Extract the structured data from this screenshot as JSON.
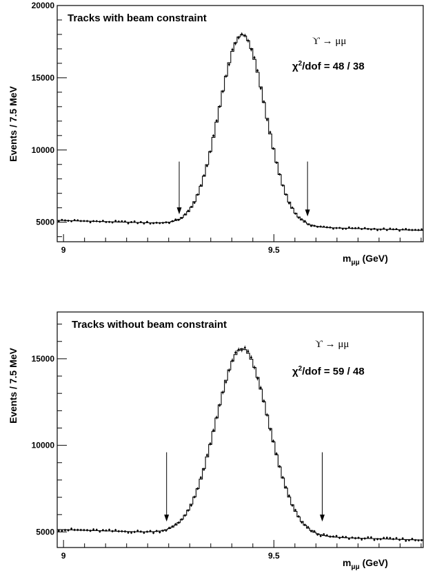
{
  "chart_data": [
    {
      "type": "line",
      "title": "Tracks with beam constraint",
      "ylabel": "Events / 7.5 MeV",
      "xlabel": "m",
      "xlabel_sub": "μμ",
      "xlabel_unit": " (GeV)",
      "decay_label": "ϒ → μμ",
      "chi2_prefix": "χ",
      "chi2_sup": "2",
      "chi2_suffix": "/dof = 48 / 38",
      "xlim": [
        8.985,
        9.855
      ],
      "ylim": [
        3650,
        20000
      ],
      "xticks": [
        {
          "value": 9.0,
          "label": "9"
        },
        {
          "value": 9.5,
          "label": "9.5"
        }
      ],
      "yticks": [
        {
          "value": 5000,
          "label": "5000"
        },
        {
          "value": 10000,
          "label": "10000"
        },
        {
          "value": 15000,
          "label": "15000"
        },
        {
          "value": 20000,
          "label": "20000"
        }
      ],
      "model": {
        "background": 4800,
        "background_slope": -800,
        "peak": 9.425,
        "sigma": 0.055,
        "amplitude": 13200
      },
      "arrows": [
        {
          "x": 9.275,
          "y_from": 9200,
          "y_to": 5550
        },
        {
          "x": 9.58,
          "y_from": 9200,
          "y_to": 5400
        }
      ],
      "bin_width": 0.0075
    },
    {
      "type": "line",
      "title": "Tracks without beam constraint",
      "ylabel": "Events / 7.5 MeV",
      "xlabel": "m",
      "xlabel_sub": "μμ",
      "xlabel_unit": " (GeV)",
      "decay_label": "ϒ → μμ",
      "chi2_prefix": "χ",
      "chi2_sup": "2",
      "chi2_suffix": "/dof = 59 / 48",
      "xlim": [
        8.985,
        9.855
      ],
      "ylim": [
        4100,
        17700
      ],
      "xticks": [
        {
          "value": 9.0,
          "label": "9"
        },
        {
          "value": 9.5,
          "label": "9.5"
        }
      ],
      "yticks": [
        {
          "value": 5000,
          "label": "5000"
        },
        {
          "value": 10000,
          "label": "10000"
        },
        {
          "value": 15000,
          "label": "15000"
        }
      ],
      "model": {
        "background": 4850,
        "background_slope": -700,
        "peak": 9.425,
        "sigma": 0.063,
        "amplitude": 10750
      },
      "arrows": [
        {
          "x": 9.245,
          "y_from": 9600,
          "y_to": 5600
        },
        {
          "x": 9.615,
          "y_from": 9600,
          "y_to": 5600
        }
      ],
      "bin_width": 0.0075
    }
  ]
}
